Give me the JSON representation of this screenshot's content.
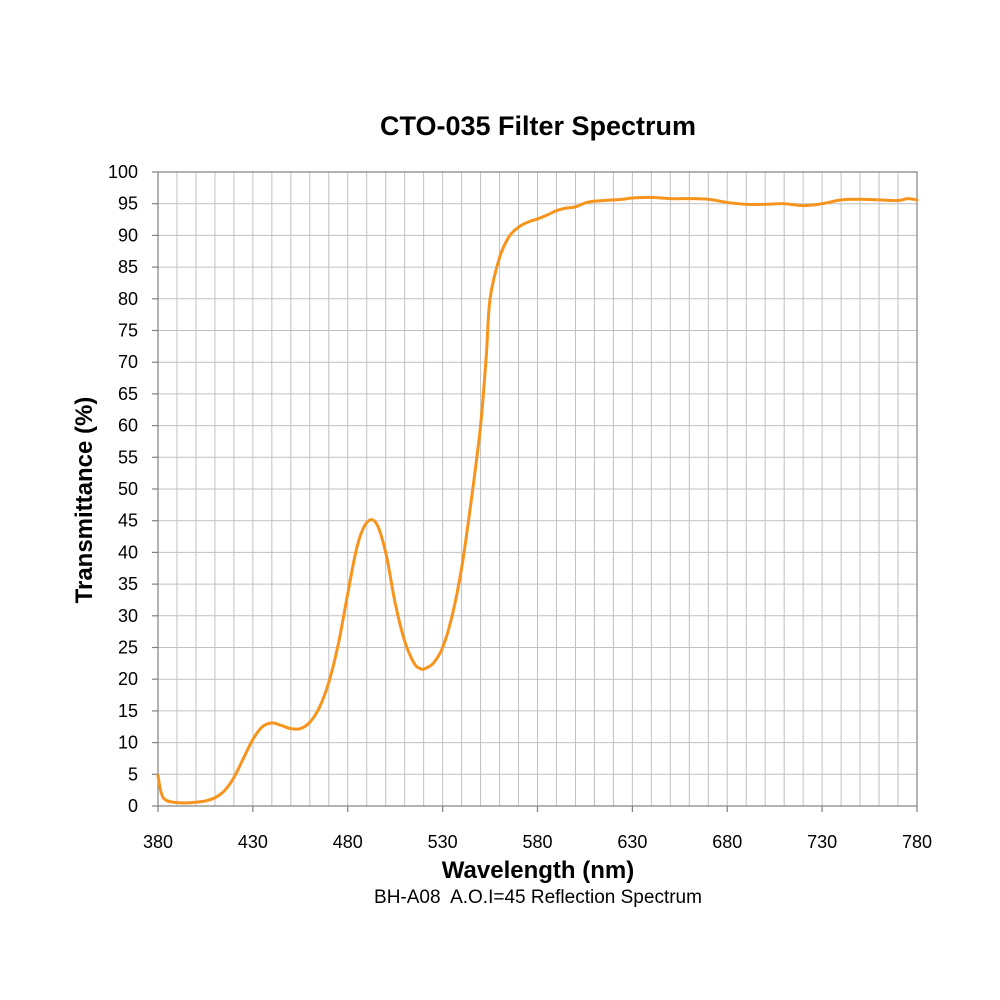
{
  "chart_data": {
    "type": "line",
    "title": "CTO-035 Filter Spectrum",
    "xlabel": "Wavelength (nm)",
    "ylabel": "Transmittance (%)",
    "note": "BH-A08  A.O.I=45 Reflection Spectrum",
    "xlim": [
      380,
      780
    ],
    "ylim": [
      0,
      100
    ],
    "x_ticks": [
      380,
      430,
      480,
      530,
      580,
      630,
      680,
      730,
      780
    ],
    "x_minor_step": 10,
    "y_ticks": [
      0,
      5,
      10,
      15,
      20,
      25,
      30,
      35,
      40,
      45,
      50,
      55,
      60,
      65,
      70,
      75,
      80,
      85,
      90,
      95,
      100
    ],
    "grid": true,
    "line_color": "#F7941D",
    "series": [
      {
        "x": [
          380,
          381,
          382,
          383,
          385,
          388,
          392,
          396,
          400,
          405,
          410,
          415,
          420,
          425,
          430,
          435,
          440,
          445,
          450,
          455,
          460,
          465,
          470,
          475,
          480,
          485,
          490,
          495,
          500,
          505,
          510,
          515,
          518,
          520,
          525,
          530,
          535,
          540,
          545,
          550,
          553,
          555,
          560,
          565,
          570,
          575,
          580,
          585,
          590,
          595,
          600,
          605,
          610,
          615,
          620,
          625,
          630,
          640,
          650,
          660,
          670,
          680,
          690,
          700,
          710,
          720,
          730,
          740,
          750,
          760,
          770,
          775,
          780
        ],
        "y": [
          4.8,
          3.0,
          1.8,
          1.2,
          0.8,
          0.6,
          0.5,
          0.5,
          0.6,
          0.8,
          1.3,
          2.4,
          4.5,
          7.5,
          10.5,
          12.5,
          13.1,
          12.7,
          12.2,
          12.2,
          13.2,
          15.5,
          19.5,
          25.5,
          33.5,
          41.0,
          44.7,
          44.6,
          40.0,
          32.0,
          26.0,
          22.5,
          21.7,
          21.6,
          22.5,
          25.0,
          30.0,
          37.5,
          48.0,
          60.0,
          71.0,
          80.0,
          86.5,
          89.8,
          91.3,
          92.1,
          92.6,
          93.2,
          93.9,
          94.3,
          94.5,
          95.1,
          95.4,
          95.5,
          95.6,
          95.7,
          95.9,
          96.0,
          95.8,
          95.8,
          95.7,
          95.2,
          94.9,
          94.9,
          95.0,
          94.7,
          95.0,
          95.6,
          95.7,
          95.6,
          95.5,
          95.8,
          95.6
        ]
      }
    ]
  }
}
